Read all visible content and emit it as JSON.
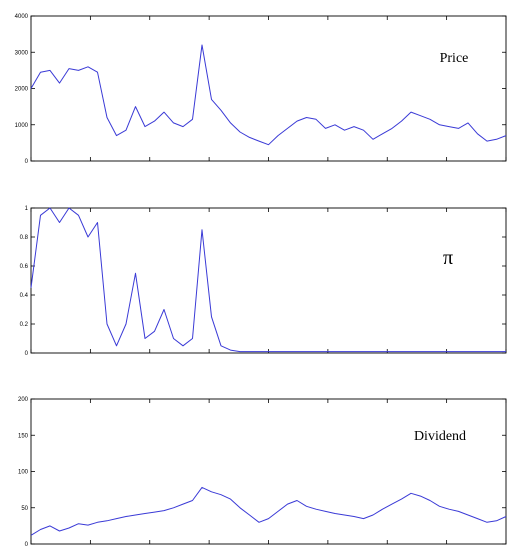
{
  "chart_data": [
    {
      "type": "line",
      "label": "Price",
      "ylim": [
        0,
        4000
      ],
      "yticks": [
        "0",
        "1000",
        "2000",
        "3000",
        "4000"
      ],
      "x": [
        0,
        4,
        8,
        12,
        16,
        20,
        24,
        28,
        32,
        36,
        40,
        44,
        48,
        52,
        56,
        60,
        64,
        68,
        72,
        76,
        80,
        84,
        88,
        92,
        96,
        100,
        104,
        108,
        112,
        116,
        120,
        124,
        128,
        132,
        136,
        140,
        144,
        148,
        152,
        156,
        160,
        164,
        168,
        172,
        176,
        180,
        184,
        188,
        192,
        196,
        200
      ],
      "y": [
        2000,
        2450,
        2500,
        2150,
        2550,
        2500,
        2600,
        2450,
        1200,
        700,
        850,
        1500,
        950,
        1100,
        1350,
        1050,
        950,
        1150,
        3200,
        1700,
        1400,
        1050,
        800,
        650,
        550,
        450,
        700,
        900,
        1100,
        1200,
        1150,
        900,
        1000,
        850,
        950,
        850,
        600,
        750,
        900,
        1100,
        1350,
        1250,
        1150,
        1000,
        950,
        900,
        1050,
        750,
        550,
        600,
        700
      ],
      "series_color": "#3a3ad6"
    },
    {
      "type": "line",
      "label": "π",
      "ylim": [
        0,
        1
      ],
      "yticks": [
        "0",
        "0.2",
        "0.4",
        "0.6",
        "0.8",
        "1"
      ],
      "x": [
        0,
        4,
        8,
        12,
        16,
        20,
        24,
        28,
        32,
        36,
        40,
        44,
        48,
        52,
        56,
        60,
        64,
        68,
        72,
        76,
        80,
        84,
        88,
        92,
        96,
        100,
        104,
        108,
        112,
        116,
        120,
        124,
        128,
        132,
        136,
        140,
        144,
        148,
        152,
        156,
        160,
        164,
        168,
        172,
        176,
        180,
        184,
        188,
        192,
        196,
        200
      ],
      "y": [
        0.45,
        0.95,
        1.0,
        0.9,
        1.0,
        0.95,
        0.8,
        0.9,
        0.2,
        0.05,
        0.2,
        0.55,
        0.1,
        0.15,
        0.3,
        0.1,
        0.05,
        0.1,
        0.85,
        0.25,
        0.05,
        0.02,
        0.01,
        0.01,
        0.01,
        0.01,
        0.01,
        0.01,
        0.01,
        0.01,
        0.01,
        0.01,
        0.01,
        0.01,
        0.01,
        0.01,
        0.01,
        0.01,
        0.01,
        0.01,
        0.01,
        0.01,
        0.01,
        0.01,
        0.01,
        0.01,
        0.01,
        0.01,
        0.01,
        0.01,
        0.01
      ],
      "series_color": "#3a3ad6"
    },
    {
      "type": "line",
      "label": "Dividend",
      "ylim": [
        0,
        200
      ],
      "yticks": [
        "0",
        "50",
        "100",
        "150",
        "200"
      ],
      "x": [
        0,
        4,
        8,
        12,
        16,
        20,
        24,
        28,
        32,
        36,
        40,
        44,
        48,
        52,
        56,
        60,
        64,
        68,
        72,
        76,
        80,
        84,
        88,
        92,
        96,
        100,
        104,
        108,
        112,
        116,
        120,
        124,
        128,
        132,
        136,
        140,
        144,
        148,
        152,
        156,
        160,
        164,
        168,
        172,
        176,
        180,
        184,
        188,
        192,
        196,
        200
      ],
      "y": [
        12,
        20,
        25,
        18,
        22,
        28,
        26,
        30,
        32,
        35,
        38,
        40,
        42,
        44,
        46,
        50,
        55,
        60,
        78,
        72,
        68,
        62,
        50,
        40,
        30,
        35,
        45,
        55,
        60,
        52,
        48,
        45,
        42,
        40,
        38,
        35,
        40,
        48,
        55,
        62,
        70,
        66,
        60,
        52,
        48,
        45,
        40,
        35,
        30,
        32,
        38
      ],
      "series_color": "#3a3ad6"
    }
  ]
}
